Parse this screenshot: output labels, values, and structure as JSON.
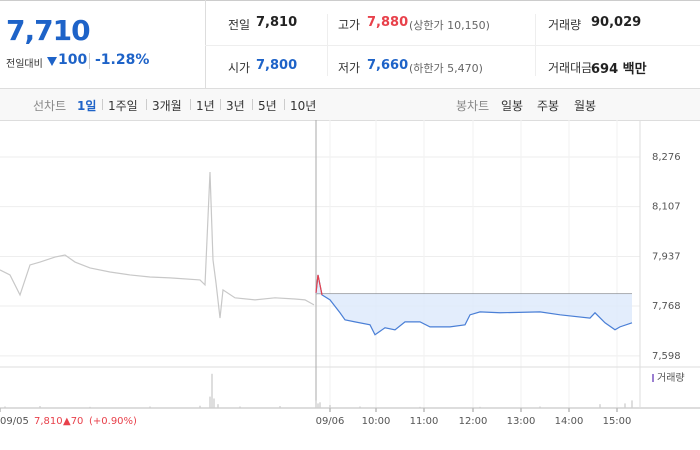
{
  "quote": {
    "price": "7,710",
    "change_label": "전일대비",
    "change": "100",
    "change_rate": "-1.28%"
  },
  "summary": [
    {
      "label": "전일",
      "value": "7,810"
    },
    {
      "label": "고가",
      "value": "7,880",
      "extra": "(상한가 10,150)"
    },
    {
      "label": "거래량",
      "value": "90,029"
    },
    {
      "label": "시가",
      "value": "7,800"
    },
    {
      "label": "저가",
      "value": "7,660",
      "extra": "(하한가 5,470)"
    },
    {
      "label": "거래대금",
      "value": "694 백만"
    }
  ],
  "tabs": {
    "line_label": "선차트",
    "periods": [
      "1일",
      "1주일",
      "3개월",
      "1년",
      "3년",
      "5년",
      "10년"
    ],
    "selected": 0,
    "candle_label": "봉차트",
    "candles": [
      "일봉",
      "주봉",
      "월봉"
    ]
  },
  "chart_data": {
    "type": "line",
    "xlim": [
      0,
      640
    ],
    "ylim": [
      7567,
      8334
    ],
    "yticks": [
      {
        "value": 8276,
        "label": "8,276"
      },
      {
        "value": 8107,
        "label": "8,107"
      },
      {
        "value": 7937,
        "label": "7,937"
      },
      {
        "value": 7768,
        "label": "7,768"
      },
      {
        "value": 7598,
        "label": "7,598"
      }
    ],
    "xticks": [
      {
        "value": 0,
        "label": "09/05"
      },
      {
        "value": 330,
        "label": "09/06"
      },
      {
        "value": 376,
        "label": "10:00"
      },
      {
        "value": 424,
        "label": "11:00"
      },
      {
        "value": 473,
        "label": "12:00"
      },
      {
        "value": 521,
        "label": "13:00"
      },
      {
        "value": 569,
        "label": "14:00"
      },
      {
        "value": 617,
        "label": "15:00"
      }
    ],
    "grid": true,
    "reference": 7810,
    "series": [
      {
        "color": "#c8c8c8",
        "x": [
          0,
          10,
          20,
          30,
          40,
          55,
          65,
          75,
          90,
          110,
          130,
          150,
          170,
          200,
          205,
          210,
          213,
          216,
          220,
          223,
          235,
          255,
          275,
          295,
          305,
          314
        ],
        "values": [
          7891,
          7874,
          7806,
          7908,
          7918,
          7935,
          7942,
          7918,
          7898,
          7884,
          7874,
          7867,
          7864,
          7857,
          7840,
          8225,
          7925,
          7847,
          7727,
          7823,
          7796,
          7789,
          7796,
          7792,
          7789,
          7772
        ]
      },
      {
        "color": "#4a7fd6",
        "up_color": "#e8414b",
        "fill": "#dce9fb",
        "x": [
          316,
          318,
          321,
          322,
          330,
          340,
          345,
          355,
          370,
          375,
          385,
          395,
          405,
          420,
          430,
          450,
          465,
          470,
          480,
          500,
          540,
          560,
          590,
          595,
          605,
          615,
          620,
          632
        ],
        "values": [
          7813,
          7874,
          7823,
          7806,
          7789,
          7745,
          7721,
          7714,
          7704,
          7670,
          7694,
          7687,
          7714,
          7714,
          7697,
          7697,
          7704,
          7738,
          7748,
          7745,
          7748,
          7738,
          7727,
          7745,
          7711,
          7687,
          7697,
          7711
        ]
      }
    ],
    "volume": {
      "label": "거래량",
      "color": "#cfcfcf",
      "ylim": [
        0,
        100
      ],
      "x": [
        5,
        40,
        90,
        150,
        200,
        210,
        212,
        214,
        218,
        240,
        280,
        316,
        318,
        320,
        330,
        360,
        420,
        480,
        540,
        600,
        625,
        632
      ],
      "values": [
        4,
        5,
        3,
        4,
        6,
        30,
        90,
        25,
        10,
        4,
        5,
        20,
        12,
        15,
        8,
        4,
        3,
        3,
        4,
        10,
        12,
        20
      ]
    },
    "footer": {
      "price": "7,810",
      "change": "▲70",
      "rate": "(+0.90%)"
    }
  }
}
